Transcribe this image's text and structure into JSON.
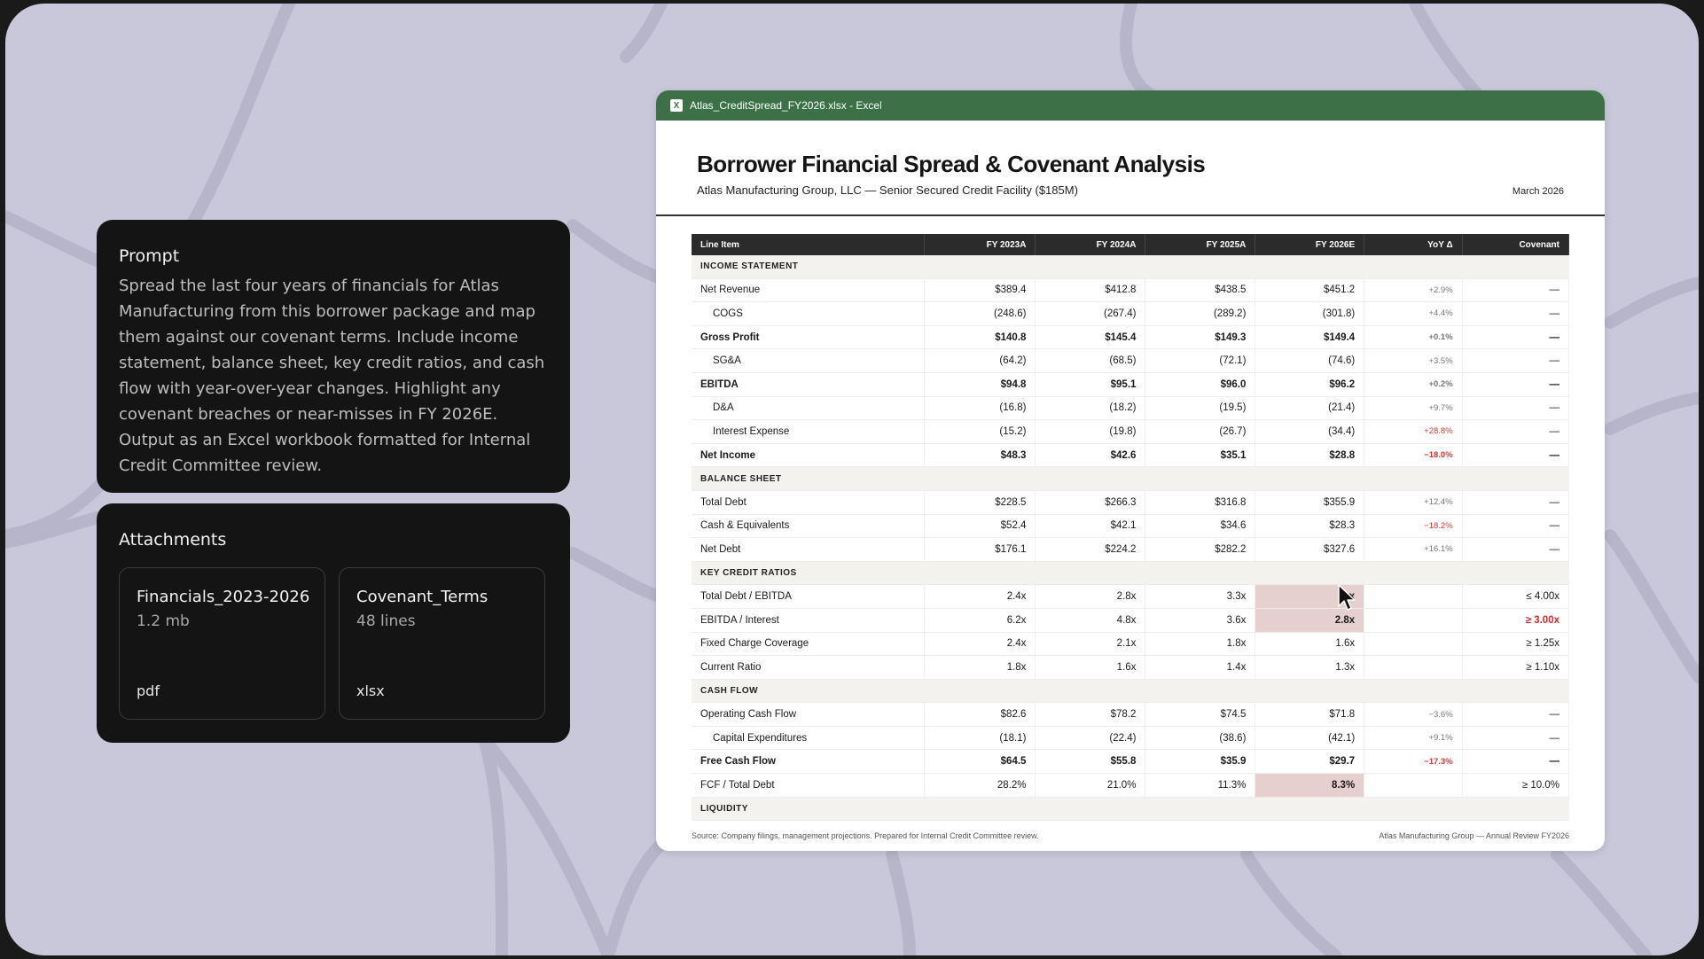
{
  "prompt": {
    "title": "Prompt",
    "body": "Spread the last four years of financials for Atlas Manufacturing from this borrower package and map them against our covenant terms. Include income statement, balance sheet, key credit ratios, and cash flow with year-over-year changes. Highlight any covenant breaches or near-misses in FY 2026E. Output as an Excel workbook formatted for Internal Credit Committee review."
  },
  "attachments": {
    "title": "Attachments",
    "files": [
      {
        "name": "Financials_2023-2026",
        "size": "1.2 mb",
        "type": "pdf"
      },
      {
        "name": "Covenant_Terms",
        "size": "48 lines",
        "type": "xlsx"
      }
    ]
  },
  "excel": {
    "window_title": "Atlas_CreditSpread_FY2026.xlsx - Excel",
    "icon_label": "X",
    "doc_title": "Borrower Financial Spread & Covenant Analysis",
    "doc_subtitle": "Atlas Manufacturing Group, LLC — Senior Secured Credit Facility ($185M)",
    "doc_date": "March 2026",
    "columns": [
      "Line Item",
      "FY 2023A",
      "FY 2024A",
      "FY 2025A",
      "FY 2026E",
      "YoY Δ",
      "Covenant"
    ],
    "footer_left": "Source: Company filings, management projections. Prepared for Internal Credit Committee review.",
    "footer_right": "Atlas Manufacturing Group — Annual Review FY2026",
    "rows": [
      {
        "kind": "section",
        "label": "INCOME STATEMENT"
      },
      {
        "kind": "row",
        "label": "Net Revenue",
        "v": [
          "$389.4",
          "$412.8",
          "$438.5",
          "$451.2"
        ],
        "yoy": "+2.9%",
        "cov": "—"
      },
      {
        "kind": "indent",
        "label": "COGS",
        "v": [
          "(248.6)",
          "(267.4)",
          "(289.2)",
          "(301.8)"
        ],
        "yoy": "+4.4%",
        "cov": "—"
      },
      {
        "kind": "bold",
        "label": "Gross Profit",
        "v": [
          "$140.8",
          "$145.4",
          "$149.3",
          "$149.4"
        ],
        "yoy": "+0.1%",
        "cov": "—"
      },
      {
        "kind": "indent",
        "label": "SG&A",
        "v": [
          "(64.2)",
          "(68.5)",
          "(72.1)",
          "(74.6)"
        ],
        "yoy": "+3.5%",
        "cov": "—"
      },
      {
        "kind": "bold",
        "label": "EBITDA",
        "v": [
          "$94.8",
          "$95.1",
          "$96.0",
          "$96.2"
        ],
        "yoy": "+0.2%",
        "cov": "—"
      },
      {
        "kind": "indent",
        "label": "D&A",
        "v": [
          "(16.8)",
          "(18.2)",
          "(19.5)",
          "(21.4)"
        ],
        "yoy": "+9.7%",
        "cov": "—"
      },
      {
        "kind": "indent",
        "label": "Interest Expense",
        "v": [
          "(15.2)",
          "(19.8)",
          "(26.7)",
          "(34.4)"
        ],
        "yoy": "+28.8%",
        "yoy_neg": true,
        "cov": "—"
      },
      {
        "kind": "bold",
        "label": "Net Income",
        "v": [
          "$48.3",
          "$42.6",
          "$35.1",
          "$28.8"
        ],
        "yoy": "−18.0%",
        "yoy_neg": true,
        "cov": "—"
      },
      {
        "kind": "section",
        "label": "BALANCE SHEET"
      },
      {
        "kind": "row",
        "label": "Total Debt",
        "v": [
          "$228.5",
          "$266.3",
          "$316.8",
          "$355.9"
        ],
        "yoy": "+12.4%",
        "cov": "—"
      },
      {
        "kind": "row",
        "label": "Cash & Equivalents",
        "v": [
          "$52.4",
          "$42.1",
          "$34.6",
          "$28.3"
        ],
        "yoy": "−18.2%",
        "yoy_neg": true,
        "cov": "—"
      },
      {
        "kind": "row",
        "label": "Net Debt",
        "v": [
          "$176.1",
          "$224.2",
          "$282.2",
          "$327.6"
        ],
        "yoy": "+16.1%",
        "cov": "—"
      },
      {
        "kind": "section",
        "label": "KEY CREDIT RATIOS"
      },
      {
        "kind": "row",
        "label": "Total Debt / EBITDA",
        "v": [
          "2.4x",
          "2.8x",
          "3.3x",
          "x"
        ],
        "hl": true,
        "yoy": "",
        "cov": "≤ 4.00x"
      },
      {
        "kind": "row",
        "label": "EBITDA / Interest",
        "v": [
          "6.2x",
          "4.8x",
          "3.6x",
          "2.8x"
        ],
        "hl": true,
        "yoy": "",
        "cov": "≥ 3.00x",
        "breach": true
      },
      {
        "kind": "row",
        "label": "Fixed Charge Coverage",
        "v": [
          "2.4x",
          "2.1x",
          "1.8x",
          "1.6x"
        ],
        "yoy": "",
        "cov": "≥ 1.25x"
      },
      {
        "kind": "row",
        "label": "Current Ratio",
        "v": [
          "1.8x",
          "1.6x",
          "1.4x",
          "1.3x"
        ],
        "yoy": "",
        "cov": "≥ 1.10x"
      },
      {
        "kind": "section",
        "label": "CASH FLOW"
      },
      {
        "kind": "row",
        "label": "Operating Cash Flow",
        "v": [
          "$82.6",
          "$78.2",
          "$74.5",
          "$71.8"
        ],
        "yoy": "−3.6%",
        "cov": "—"
      },
      {
        "kind": "indent",
        "label": "Capital Expenditures",
        "v": [
          "(18.1)",
          "(22.4)",
          "(38.6)",
          "(42.1)"
        ],
        "yoy": "+9.1%",
        "cov": "—"
      },
      {
        "kind": "bold",
        "label": "Free Cash Flow",
        "v": [
          "$64.5",
          "$55.8",
          "$35.9",
          "$29.7"
        ],
        "yoy": "−17.3%",
        "yoy_neg": true,
        "cov": "—"
      },
      {
        "kind": "row",
        "label": "FCF / Total Debt",
        "v": [
          "28.2%",
          "21.0%",
          "11.3%",
          "8.3%"
        ],
        "hl": true,
        "yoy": "",
        "cov": "≥ 10.0%"
      },
      {
        "kind": "section",
        "label": "LIQUIDITY"
      }
    ]
  },
  "colors": {
    "excel_green": "#3c7148",
    "background": "#c9c8da",
    "breach_red": "#cc2a2a",
    "highlight": "#e6cfcf"
  }
}
